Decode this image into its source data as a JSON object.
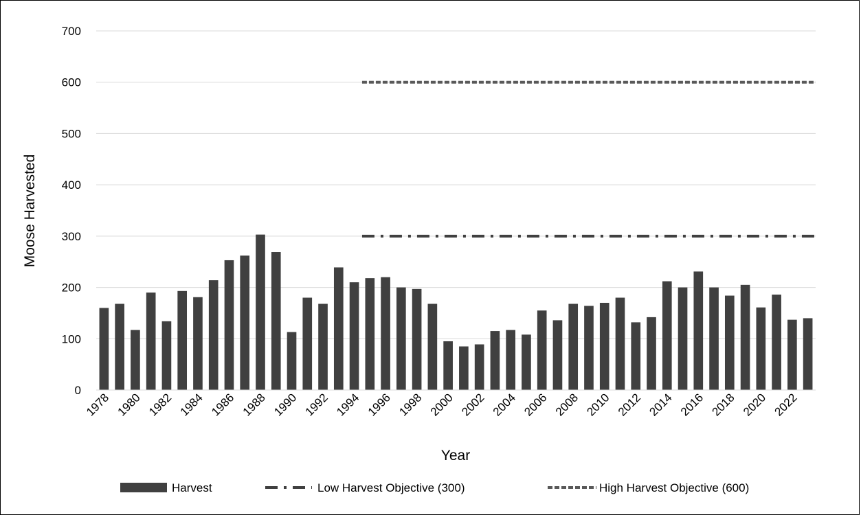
{
  "chart_data": {
    "type": "bar",
    "title": "",
    "xlabel": "Year",
    "ylabel": "Moose Harvested",
    "ylim": [
      0,
      700
    ],
    "yticks": [
      0,
      100,
      200,
      300,
      400,
      500,
      600,
      700
    ],
    "grid": true,
    "legend_position": "bottom",
    "categories": [
      1978,
      1979,
      1980,
      1981,
      1982,
      1983,
      1984,
      1985,
      1986,
      1987,
      1988,
      1989,
      1990,
      1991,
      1992,
      1993,
      1994,
      1995,
      1996,
      1997,
      1998,
      1999,
      2000,
      2001,
      2002,
      2003,
      2004,
      2005,
      2006,
      2007,
      2008,
      2009,
      2010,
      2011,
      2012,
      2013,
      2014,
      2015,
      2016,
      2017,
      2018,
      2019,
      2020,
      2021,
      2022,
      2023
    ],
    "x_tick_labels": [
      "1978",
      "1980",
      "1982",
      "1984",
      "1986",
      "1988",
      "1990",
      "1992",
      "1994",
      "1996",
      "1998",
      "2000",
      "2002",
      "2004",
      "2006",
      "2008",
      "2010",
      "2012",
      "2014",
      "2016",
      "2018",
      "2020",
      "2022"
    ],
    "series": [
      {
        "name": "Harvest",
        "kind": "bar",
        "color": "#404040",
        "values": [
          160,
          168,
          117,
          190,
          134,
          193,
          181,
          214,
          253,
          262,
          303,
          269,
          113,
          180,
          168,
          239,
          210,
          218,
          220,
          200,
          197,
          168,
          95,
          85,
          89,
          115,
          117,
          108,
          155,
          136,
          168,
          164,
          170,
          180,
          132,
          142,
          212,
          200,
          231,
          200,
          184,
          205,
          161,
          186,
          137,
          140
        ]
      },
      {
        "name": "Low Harvest Objective (300)",
        "kind": "line",
        "style": "dash-dot",
        "color": "#404040",
        "start": 1995,
        "end": 2023,
        "value": 300
      },
      {
        "name": "High Harvest Objective (600)",
        "kind": "line",
        "style": "dashed",
        "color": "#595959",
        "start": 1995,
        "end": 2023,
        "value": 600
      }
    ]
  }
}
